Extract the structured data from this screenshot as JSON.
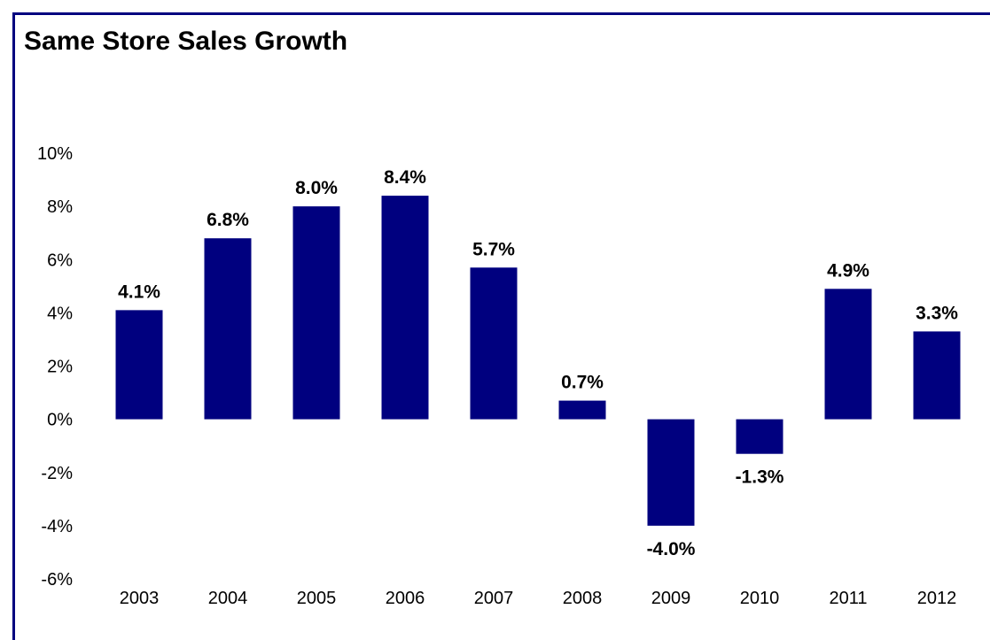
{
  "chart_data": {
    "type": "bar",
    "title": "Same Store Sales Growth",
    "xlabel": "",
    "ylabel": "",
    "categories": [
      "2003",
      "2004",
      "2005",
      "2006",
      "2007",
      "2008",
      "2009",
      "2010",
      "2011",
      "2012"
    ],
    "values": [
      4.1,
      6.8,
      8.0,
      8.4,
      5.7,
      0.7,
      -4.0,
      -1.3,
      4.9,
      3.3
    ],
    "data_labels": [
      "4.1%",
      "6.8%",
      "8.0%",
      "8.4%",
      "5.7%",
      "0.7%",
      "-4.0%",
      "-1.3%",
      "4.9%",
      "3.3%"
    ],
    "ylim": [
      -6,
      10
    ],
    "y_ticks": [
      10,
      8,
      6,
      4,
      2,
      0,
      -2,
      -4,
      -6
    ],
    "y_tick_labels": [
      "10%",
      "8%",
      "6%",
      "4%",
      "2%",
      "0%",
      "-2%",
      "-4%",
      "-6%"
    ],
    "grid": false,
    "legend": "none",
    "bar_color": "#00007f",
    "frame_color": "#00007f"
  }
}
